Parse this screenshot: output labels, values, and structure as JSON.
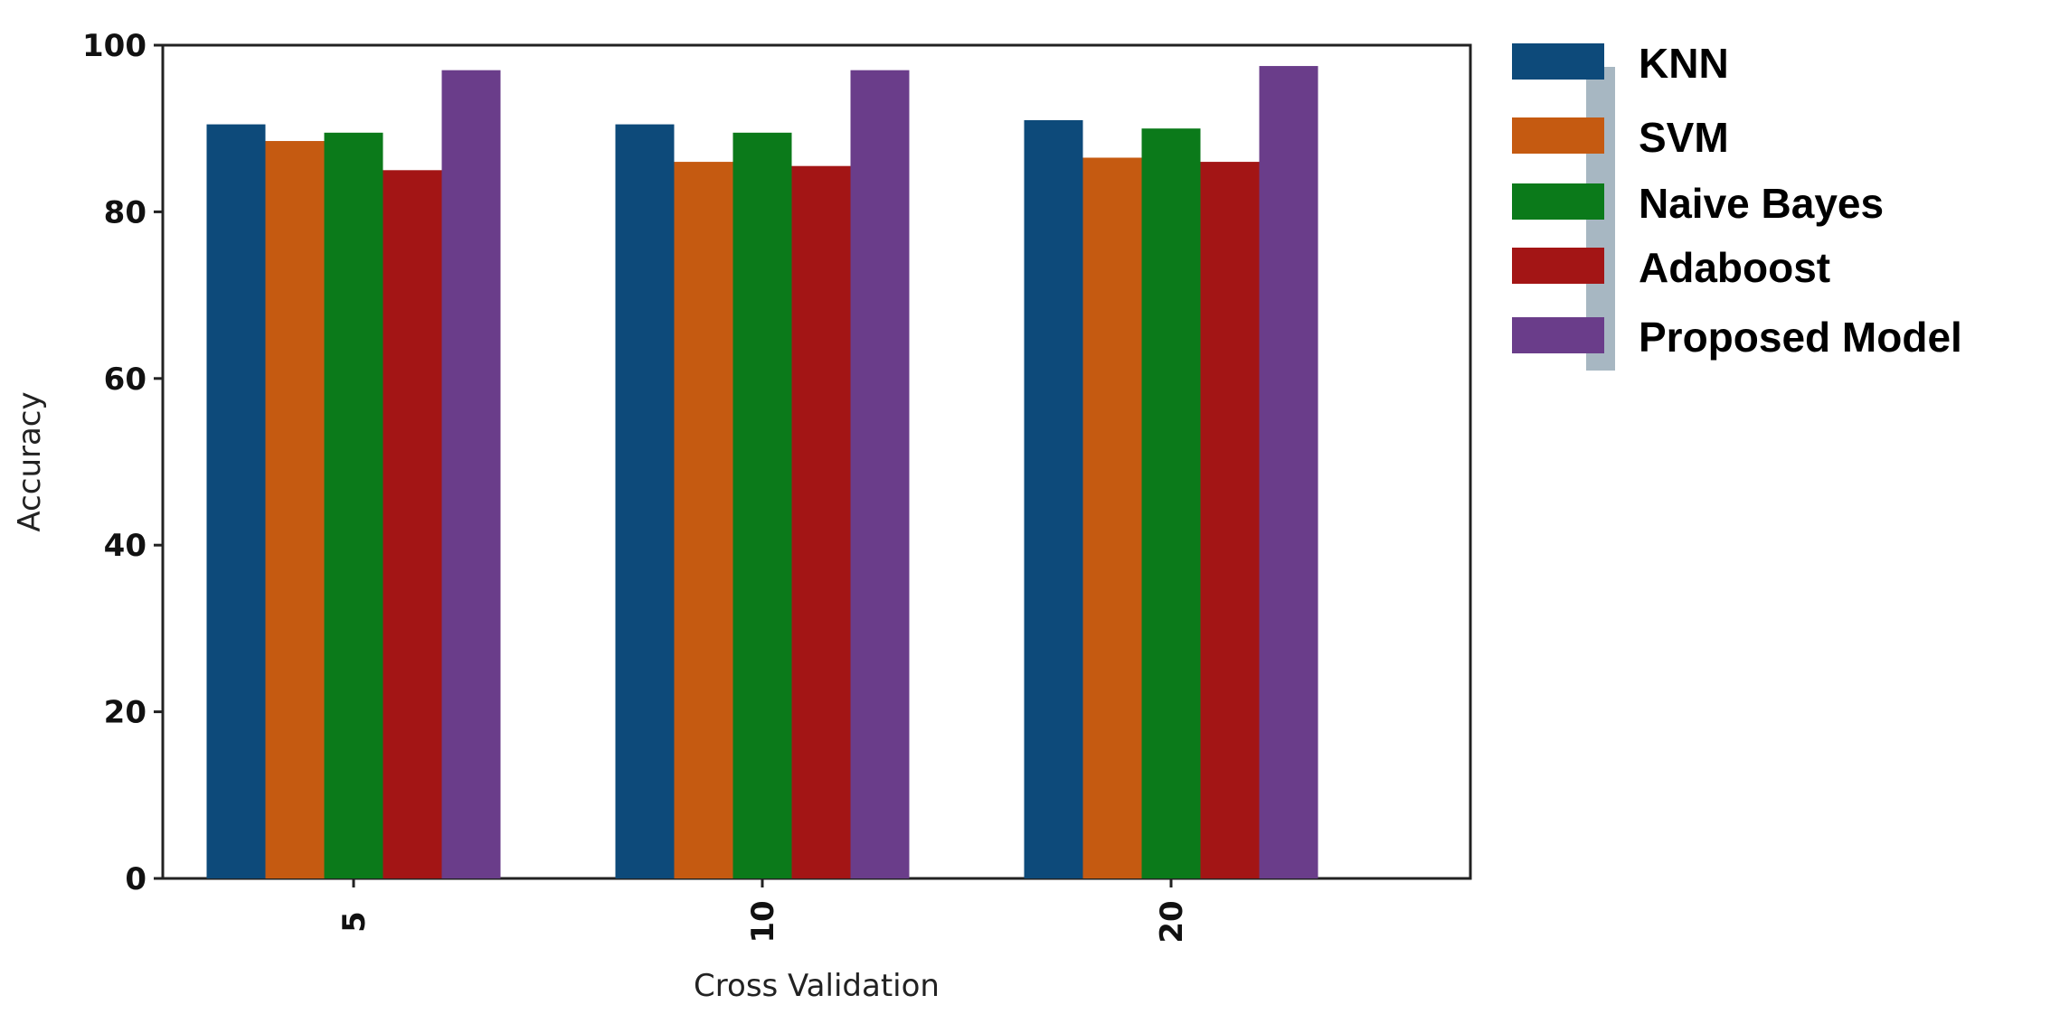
{
  "chart_data": {
    "type": "bar",
    "categories": [
      "5",
      "10",
      "20"
    ],
    "series": [
      {
        "name": "KNN",
        "color": "#0d4a7a",
        "values": [
          90.5,
          90.5,
          91.0
        ]
      },
      {
        "name": "SVM",
        "color": "#c55a11",
        "values": [
          88.5,
          86.0,
          86.5
        ]
      },
      {
        "name": "Naive Bayes",
        "color": "#0b7a1a",
        "values": [
          89.5,
          89.5,
          90.0
        ]
      },
      {
        "name": "Adaboost",
        "color": "#a31515",
        "values": [
          85.0,
          85.5,
          86.0
        ]
      },
      {
        "name": "Proposed Model",
        "color": "#6a3d8a",
        "values": [
          97.0,
          97.0,
          97.5
        ]
      }
    ],
    "xlabel": "Cross Validation",
    "ylabel": "Accuracy",
    "ylim": [
      0,
      100
    ],
    "yticks": [
      "0",
      "20",
      "40",
      "60",
      "80",
      "100"
    ],
    "grid": false,
    "legend_position": "outside-top-right"
  }
}
